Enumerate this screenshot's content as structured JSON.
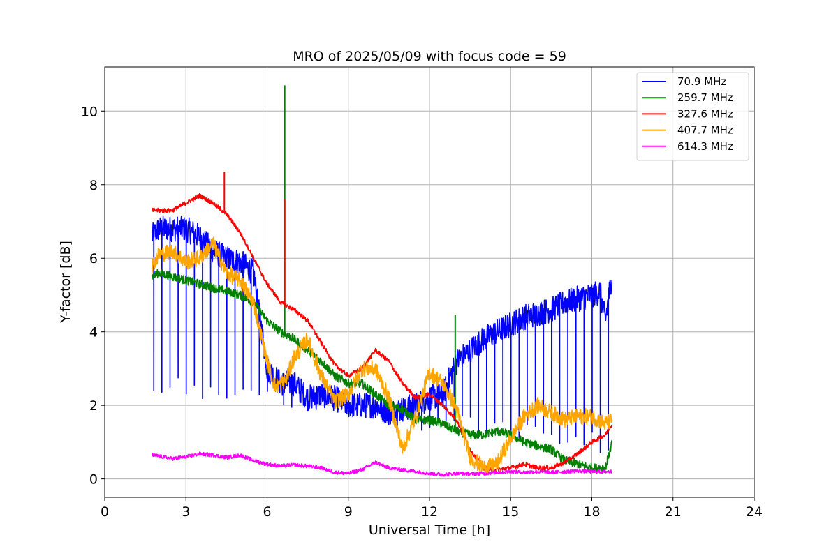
{
  "chart_data": {
    "type": "line",
    "title": "MRO of 2025/05/09 with focus code = 59",
    "xlabel": "Universal Time [h]",
    "ylabel": "Y-factor [dB]",
    "xlim": [
      0,
      24
    ],
    "ylim": [
      -0.5,
      11.2
    ],
    "xticks": [
      0,
      3,
      6,
      9,
      12,
      15,
      18,
      21,
      24
    ],
    "yticks": [
      0,
      2,
      4,
      6,
      8,
      10
    ],
    "grid": true,
    "legend_position": "top-right",
    "series": [
      {
        "name": " 70.9 MHz",
        "color": "#0000ff",
        "x": [
          1.75,
          2,
          2.5,
          3,
          3.5,
          4,
          4.5,
          5,
          5.5,
          6,
          6.5,
          7,
          7.5,
          8,
          8.5,
          9,
          9.5,
          10,
          10.5,
          11,
          11.5,
          12,
          12.5,
          13,
          13.5,
          14,
          14.5,
          15,
          15.5,
          16,
          16.5,
          17,
          17.5,
          18,
          18.3,
          18.5,
          18.75
        ],
        "y": [
          6.6,
          6.8,
          6.8,
          6.8,
          6.6,
          6.2,
          6.0,
          5.9,
          5.6,
          3.0,
          2.6,
          2.6,
          2.2,
          2.3,
          2.2,
          2.0,
          2.0,
          2.0,
          1.8,
          1.9,
          2.0,
          2.2,
          2.3,
          3.2,
          3.5,
          3.8,
          4.0,
          4.2,
          4.4,
          4.5,
          4.6,
          4.8,
          4.9,
          5.0,
          5.1,
          4.3,
          5.6
        ],
        "dip_spacing": 0.3,
        "dip_to": 2.6
      },
      {
        "name": "259.7 MHz",
        "color": "#008000",
        "x": [
          1.75,
          2,
          3,
          4,
          5,
          5.5,
          6,
          6.5,
          7,
          7.5,
          8,
          8.5,
          9,
          9.5,
          10,
          10.5,
          11,
          11.5,
          12,
          12.5,
          13,
          13.5,
          14,
          14.5,
          15,
          15.5,
          16,
          16.5,
          17,
          17.5,
          18,
          18.5,
          18.75
        ],
        "y": [
          5.5,
          5.6,
          5.4,
          5.2,
          5.0,
          4.8,
          4.3,
          4.0,
          3.8,
          3.5,
          3.2,
          2.8,
          2.6,
          2.6,
          2.3,
          2.0,
          1.9,
          1.6,
          1.6,
          1.5,
          1.3,
          1.2,
          1.2,
          1.3,
          1.2,
          1.0,
          0.9,
          0.8,
          0.5,
          0.4,
          0.3,
          0.3,
          1.0
        ],
        "spikes": [
          {
            "x": 6.65,
            "y": 10.7
          },
          {
            "x": 12.95,
            "y": 4.45
          }
        ]
      },
      {
        "name": "327.6 MHz",
        "color": "#ff0000",
        "x": [
          1.75,
          2,
          2.5,
          3,
          3.5,
          4,
          4.5,
          5,
          5.5,
          6,
          6.5,
          7,
          7.5,
          8,
          8.5,
          9,
          9.5,
          10,
          10.5,
          11,
          11.5,
          12,
          12.5,
          13,
          13.5,
          14,
          14.5,
          15,
          15.5,
          16,
          16.5,
          17,
          17.5,
          18,
          18.5,
          18.75
        ],
        "y": [
          7.3,
          7.3,
          7.3,
          7.5,
          7.7,
          7.5,
          7.2,
          6.7,
          6.0,
          5.3,
          4.8,
          4.6,
          4.3,
          3.7,
          3.1,
          2.8,
          3.0,
          3.5,
          3.2,
          2.6,
          2.2,
          2.3,
          2.0,
          1.6,
          0.8,
          0.3,
          0.25,
          0.3,
          0.4,
          0.3,
          0.3,
          0.45,
          0.7,
          1.0,
          1.2,
          1.5
        ],
        "spikes": [
          {
            "x": 4.42,
            "y": 8.35
          },
          {
            "x": 6.65,
            "y": 7.6
          }
        ]
      },
      {
        "name": "407.7 MHz",
        "color": "#ffa500",
        "x": [
          1.75,
          2,
          2.5,
          3,
          3.5,
          4,
          4.5,
          5,
          5.5,
          6,
          6.3,
          6.7,
          7,
          7.5,
          8,
          8.5,
          9,
          9.5,
          10,
          10.5,
          11,
          11.5,
          12,
          12.5,
          13,
          13.5,
          14,
          14.5,
          15,
          15.5,
          16,
          16.5,
          17,
          17.5,
          18,
          18.5,
          18.75
        ],
        "y": [
          5.8,
          6.1,
          6.2,
          5.9,
          6.0,
          6.4,
          5.6,
          5.4,
          4.8,
          3.2,
          2.5,
          2.7,
          3.3,
          3.8,
          2.8,
          2.1,
          2.3,
          3.0,
          3.0,
          2.2,
          0.8,
          1.7,
          2.9,
          2.6,
          1.9,
          0.6,
          0.3,
          0.4,
          1.1,
          1.7,
          2.0,
          1.8,
          1.6,
          1.7,
          1.7,
          1.5,
          1.6
        ]
      },
      {
        "name": "614.3 MHz",
        "color": "#ff00ff",
        "x": [
          1.75,
          2,
          2.5,
          3,
          3.5,
          4,
          4.5,
          5,
          5.5,
          6,
          6.5,
          7,
          7.5,
          8,
          8.5,
          9,
          9.5,
          10,
          10.5,
          11,
          11.5,
          12,
          12.5,
          13,
          13.5,
          14,
          14.5,
          15,
          15.5,
          16,
          16.5,
          17,
          17.5,
          18,
          18.5,
          18.75
        ],
        "y": [
          0.65,
          0.62,
          0.55,
          0.6,
          0.68,
          0.65,
          0.58,
          0.65,
          0.5,
          0.4,
          0.35,
          0.38,
          0.35,
          0.3,
          0.18,
          0.15,
          0.25,
          0.45,
          0.3,
          0.25,
          0.2,
          0.15,
          0.12,
          0.15,
          0.14,
          0.15,
          0.18,
          0.2,
          0.18,
          0.2,
          0.18,
          0.2,
          0.22,
          0.2,
          0.2,
          0.2
        ]
      }
    ]
  }
}
